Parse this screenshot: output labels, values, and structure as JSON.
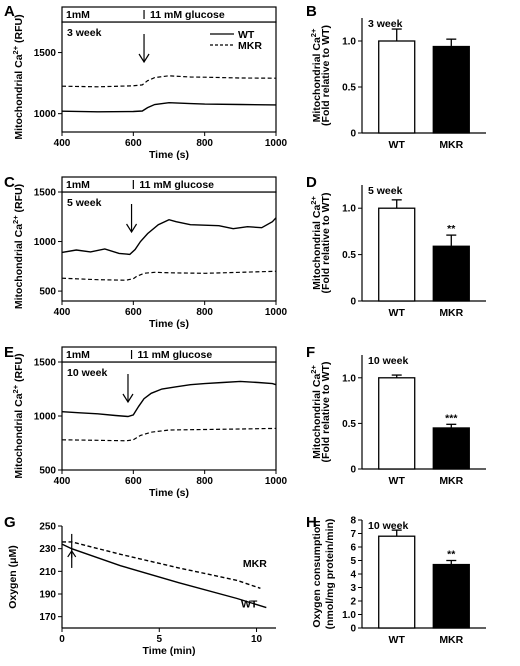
{
  "figure": {
    "panels": [
      {
        "label": "A"
      },
      {
        "label": "B"
      },
      {
        "label": "C"
      },
      {
        "label": "D"
      },
      {
        "label": "E"
      },
      {
        "label": "F"
      },
      {
        "label": "G"
      },
      {
        "label": "H"
      }
    ]
  },
  "chart_data": [
    {
      "panel": "A",
      "type": "line",
      "bar_left": "1mM",
      "bar_right": "11 mM glucose",
      "annotation": "3 week",
      "xlabel": "Time (s)",
      "ylabel": "Mitochondrial Ca²⁺ (RFU)",
      "xlim": [
        400,
        1000
      ],
      "ylim": [
        850,
        1750
      ],
      "xticks": [
        400,
        600,
        800,
        1000
      ],
      "yticks": [
        1000,
        1500
      ],
      "stim_x": 630,
      "arrow_x": 630,
      "legend_position": "top-right",
      "series": [
        {
          "name": "WT",
          "style": "solid",
          "x": [
            400,
            500,
            600,
            625,
            640,
            660,
            700,
            760,
            800,
            900,
            1000
          ],
          "y": [
            1020,
            1015,
            1018,
            1022,
            1050,
            1075,
            1090,
            1082,
            1078,
            1075,
            1072
          ]
        },
        {
          "name": "MKR",
          "style": "dashed",
          "x": [
            400,
            500,
            600,
            625,
            640,
            660,
            700,
            760,
            800,
            900,
            1000
          ],
          "y": [
            1225,
            1220,
            1228,
            1235,
            1270,
            1295,
            1310,
            1300,
            1298,
            1292,
            1290
          ]
        }
      ]
    },
    {
      "panel": "B",
      "type": "bar",
      "annotation": "3 week",
      "ylabel": "Mitochondrial Ca²⁺ (Fold relative to WT)",
      "categories": [
        "WT",
        "MKR"
      ],
      "values": [
        1.0,
        0.94
      ],
      "errors": [
        0.13,
        0.08
      ],
      "fills": [
        "#ffffff",
        "#000000"
      ],
      "significance": [
        "",
        ""
      ],
      "ylim": [
        0,
        1.25
      ],
      "yticks": [
        0,
        0.5,
        1.0
      ]
    },
    {
      "panel": "C",
      "type": "line",
      "bar_left": "1mM",
      "bar_right": "11 mM glucose",
      "annotation": "5 week",
      "xlabel": "Time (s)",
      "ylabel": "Mitochondrial Ca²⁺ (RFU)",
      "xlim": [
        400,
        1000
      ],
      "ylim": [
        400,
        1500
      ],
      "xticks": [
        400,
        600,
        800,
        1000
      ],
      "yticks": [
        500,
        1000,
        1500
      ],
      "stim_x": 600,
      "arrow_x": 595,
      "series": [
        {
          "name": "WT",
          "style": "solid",
          "x": [
            400,
            440,
            480,
            520,
            560,
            590,
            605,
            620,
            640,
            670,
            700,
            720,
            760,
            800,
            840,
            880,
            920,
            960,
            990,
            1000
          ],
          "y": [
            890,
            915,
            895,
            925,
            880,
            870,
            920,
            1000,
            1080,
            1170,
            1220,
            1200,
            1170,
            1165,
            1160,
            1130,
            1150,
            1140,
            1200,
            1240
          ]
        },
        {
          "name": "MKR",
          "style": "dashed",
          "x": [
            400,
            500,
            580,
            600,
            610,
            630,
            660,
            700,
            800,
            900,
            1000
          ],
          "y": [
            630,
            615,
            610,
            625,
            650,
            680,
            690,
            685,
            680,
            690,
            700
          ]
        }
      ]
    },
    {
      "panel": "D",
      "type": "bar",
      "annotation": "5 week",
      "ylabel": "Mitochondrial Ca²⁺ (Fold relative to WT)",
      "categories": [
        "WT",
        "MKR"
      ],
      "values": [
        1.0,
        0.59
      ],
      "errors": [
        0.09,
        0.12
      ],
      "fills": [
        "#ffffff",
        "#000000"
      ],
      "significance": [
        "",
        "**"
      ],
      "ylim": [
        0,
        1.25
      ],
      "yticks": [
        0,
        0.5,
        1.0
      ]
    },
    {
      "panel": "E",
      "type": "line",
      "bar_left": "1mM",
      "bar_right": "11 mM glucose",
      "annotation": "10 week",
      "xlabel": "Time (s)",
      "ylabel": "Mitochondrial Ca²⁺ (RFU)",
      "xlim": [
        400,
        1000
      ],
      "ylim": [
        500,
        1500
      ],
      "xticks": [
        400,
        600,
        800,
        1000
      ],
      "yticks": [
        500,
        1000,
        1500
      ],
      "stim_x": 595,
      "arrow_x": 585,
      "series": [
        {
          "name": "WT",
          "style": "solid",
          "x": [
            400,
            450,
            500,
            550,
            585,
            600,
            615,
            630,
            650,
            680,
            720,
            760,
            800,
            850,
            900,
            950,
            990,
            1000
          ],
          "y": [
            1040,
            1030,
            1020,
            1005,
            995,
            1010,
            1090,
            1160,
            1210,
            1250,
            1270,
            1290,
            1300,
            1310,
            1320,
            1310,
            1300,
            1290
          ]
        },
        {
          "name": "MKR",
          "style": "dashed",
          "x": [
            400,
            500,
            580,
            600,
            620,
            650,
            700,
            800,
            900,
            1000
          ],
          "y": [
            780,
            775,
            770,
            780,
            820,
            850,
            870,
            875,
            880,
            885
          ]
        }
      ]
    },
    {
      "panel": "F",
      "type": "bar",
      "annotation": "10 week",
      "ylabel": "Mitochondrial Ca²⁺ (Fold relative to WT)",
      "categories": [
        "WT",
        "MKR"
      ],
      "values": [
        1.0,
        0.45
      ],
      "errors": [
        0.03,
        0.04
      ],
      "fills": [
        "#ffffff",
        "#000000"
      ],
      "significance": [
        "",
        "***"
      ],
      "ylim": [
        0,
        1.25
      ],
      "yticks": [
        0,
        0.5,
        1.0
      ]
    },
    {
      "panel": "G",
      "type": "line",
      "xlabel": "Time (min)",
      "ylabel": "Oxygen (μM)",
      "xlim": [
        0,
        11
      ],
      "ylim": [
        160,
        250
      ],
      "xticks": [
        0,
        5,
        10
      ],
      "yticks": [
        170,
        190,
        210,
        230,
        250
      ],
      "arrow_x": 0.5,
      "series": [
        {
          "name": "WT",
          "style": "solid",
          "x": [
            0,
            0.5,
            3,
            6,
            9,
            10.5
          ],
          "y": [
            234,
            230,
            215,
            200,
            186,
            178
          ]
        },
        {
          "name": "MKR",
          "style": "dashed",
          "x": [
            0,
            0.5,
            3,
            6,
            9,
            10.2
          ],
          "y": [
            236,
            236,
            225,
            213,
            202,
            195
          ]
        }
      ]
    },
    {
      "panel": "H",
      "type": "bar",
      "annotation": "10 week",
      "ylabel": "Oxygen consumption (nmol/mg protein/min)",
      "categories": [
        "WT",
        "MKR"
      ],
      "values": [
        6.8,
        4.7
      ],
      "errors": [
        0.45,
        0.3
      ],
      "fills": [
        "#ffffff",
        "#000000"
      ],
      "significance": [
        "",
        "**"
      ],
      "ylim": [
        0,
        8
      ],
      "yticks": [
        0,
        1,
        2,
        3,
        4,
        5,
        6,
        7,
        8
      ]
    }
  ]
}
